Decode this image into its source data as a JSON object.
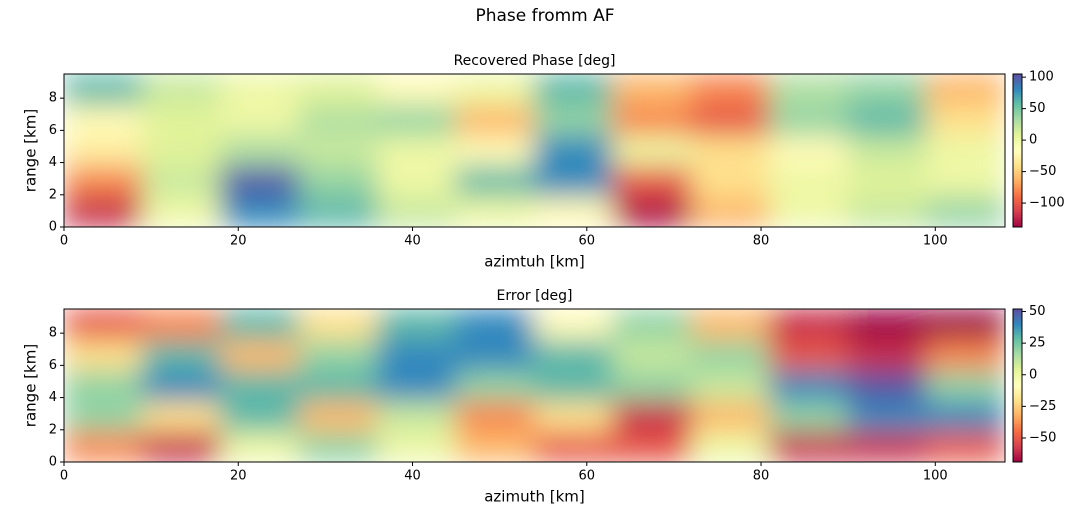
{
  "figure_title": "Phase fromm AF",
  "colormap": "Spectral",
  "chart_data": [
    {
      "type": "heatmap",
      "title": "Recovered Phase [deg]",
      "x_label": "azimtuh [km]",
      "y_label": "range [km]",
      "xlim": [
        0,
        108
      ],
      "ylim": [
        0,
        9.5
      ],
      "xticks": [
        0,
        20,
        40,
        60,
        80,
        100
      ],
      "yticks": [
        0,
        2,
        4,
        6,
        8
      ],
      "clim": [
        -138,
        105
      ],
      "cticks": [
        {
          "value": -100,
          "label": "−100"
        },
        {
          "value": -50,
          "label": "−50"
        },
        0,
        50,
        100
      ],
      "z": [
        [
          -120,
          0,
          80,
          60,
          20,
          0,
          -20,
          -130,
          -60,
          0,
          20,
          40
        ],
        [
          -80,
          20,
          100,
          40,
          0,
          60,
          80,
          -100,
          -40,
          0,
          10,
          0
        ],
        [
          -30,
          10,
          30,
          20,
          0,
          -20,
          80,
          0,
          -40,
          -20,
          20,
          0
        ],
        [
          -20,
          10,
          0,
          30,
          40,
          -60,
          40,
          -80,
          -100,
          40,
          60,
          -40
        ],
        [
          60,
          20,
          0,
          10,
          -20,
          0,
          60,
          -60,
          -80,
          30,
          40,
          -60
        ]
      ]
    },
    {
      "type": "heatmap",
      "title": "Error [deg]",
      "x_label": "azimuth [km]",
      "y_label": "range [km]",
      "xlim": [
        0,
        108
      ],
      "ylim": [
        0,
        9.5
      ],
      "xticks": [
        0,
        20,
        40,
        60,
        80,
        100
      ],
      "yticks": [
        0,
        2,
        4,
        6,
        8
      ],
      "clim": [
        -69,
        52
      ],
      "cticks": [
        {
          "value": -50,
          "label": "−50"
        },
        {
          "value": -25,
          "label": "−25"
        },
        0,
        25,
        50
      ],
      "z": [
        [
          -40,
          -60,
          0,
          20,
          0,
          -30,
          -50,
          -50,
          0,
          -60,
          -60,
          -50
        ],
        [
          20,
          -20,
          30,
          -30,
          10,
          -40,
          -20,
          -60,
          -30,
          20,
          40,
          40
        ],
        [
          20,
          40,
          30,
          30,
          40,
          20,
          30,
          20,
          10,
          40,
          50,
          20
        ],
        [
          -20,
          30,
          -30,
          20,
          40,
          40,
          30,
          10,
          20,
          -50,
          -60,
          -40
        ],
        [
          -50,
          -40,
          30,
          -20,
          30,
          40,
          -10,
          20,
          -30,
          -60,
          -70,
          -70
        ]
      ]
    }
  ]
}
